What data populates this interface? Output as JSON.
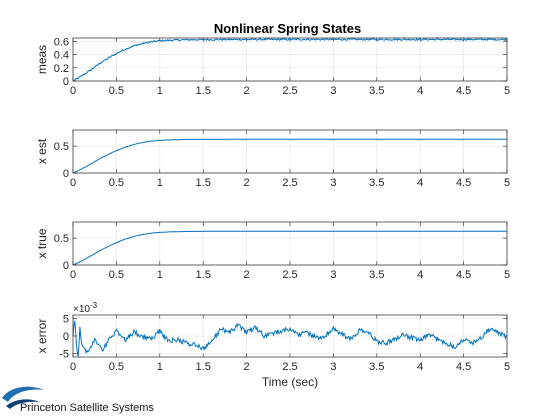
{
  "colors": {
    "series": "#0072BD",
    "axes": "#262626",
    "grid": "#e3e3e3"
  },
  "logo": {
    "text": "Princeton Satellite Systems",
    "icon": "swoosh-logo-icon"
  },
  "chart_data": [
    {
      "type": "line",
      "title": "Nonlinear Spring States",
      "ylabel": "meas",
      "xlabel": "",
      "xlim": [
        0,
        5
      ],
      "ylim": [
        0,
        0.65
      ],
      "xticks": [
        "0",
        "0.5",
        "1",
        "1.5",
        "2",
        "2.5",
        "3",
        "3.5",
        "4",
        "4.5",
        "5"
      ],
      "yticks": [
        "0",
        "0.2",
        "0.4",
        "0.6"
      ],
      "grid": true,
      "series": [
        {
          "values": {
            "x": [
              0,
              0.05,
              0.1,
              0.15,
              0.2,
              0.25,
              0.3,
              0.35,
              0.4,
              0.45,
              0.5,
              0.55,
              0.6,
              0.65,
              0.7,
              0.75,
              0.8,
              0.85,
              0.9,
              0.95,
              1.0,
              1.1,
              1.2,
              1.3,
              1.4,
              1.5,
              1.75,
              2.0,
              2.5,
              3.0,
              3.5,
              4.0,
              4.5,
              5.0
            ],
            "y": [
              0,
              0.035,
              0.075,
              0.12,
              0.165,
              0.21,
              0.26,
              0.3,
              0.34,
              0.38,
              0.415,
              0.45,
              0.48,
              0.505,
              0.53,
              0.55,
              0.565,
              0.58,
              0.592,
              0.6,
              0.607,
              0.615,
              0.62,
              0.623,
              0.625,
              0.626,
              0.627,
              0.628,
              0.628,
              0.628,
              0.628,
              0.628,
              0.628,
              0.628
            ]
          }
        }
      ],
      "noise": 0.012
    },
    {
      "type": "line",
      "title": "",
      "ylabel": "x est",
      "xlabel": "",
      "xlim": [
        0,
        5
      ],
      "ylim": [
        0,
        0.8
      ],
      "xticks": [
        "0",
        "0.5",
        "1",
        "1.5",
        "2",
        "2.5",
        "3",
        "3.5",
        "4",
        "4.5",
        "5"
      ],
      "yticks": [
        "0",
        "0.5"
      ],
      "grid": true,
      "series": [
        {
          "values": {
            "x": [
              0,
              0.05,
              0.1,
              0.15,
              0.2,
              0.25,
              0.3,
              0.35,
              0.4,
              0.45,
              0.5,
              0.55,
              0.6,
              0.65,
              0.7,
              0.75,
              0.8,
              0.85,
              0.9,
              0.95,
              1.0,
              1.1,
              1.2,
              1.3,
              1.4,
              1.5,
              1.75,
              2.0,
              2.5,
              3.0,
              3.5,
              4.0,
              4.5,
              5.0
            ],
            "y": [
              0,
              0.035,
              0.075,
              0.12,
              0.165,
              0.21,
              0.26,
              0.3,
              0.34,
              0.38,
              0.415,
              0.45,
              0.48,
              0.505,
              0.53,
              0.55,
              0.565,
              0.58,
              0.592,
              0.6,
              0.607,
              0.615,
              0.62,
              0.623,
              0.625,
              0.626,
              0.627,
              0.628,
              0.628,
              0.628,
              0.628,
              0.628,
              0.628,
              0.628
            ]
          }
        }
      ],
      "noise": 0.0015
    },
    {
      "type": "line",
      "title": "",
      "ylabel": "x true",
      "xlabel": "",
      "xlim": [
        0,
        5
      ],
      "ylim": [
        0,
        0.8
      ],
      "xticks": [
        "0",
        "0.5",
        "1",
        "1.5",
        "2",
        "2.5",
        "3",
        "3.5",
        "4",
        "4.5",
        "5"
      ],
      "yticks": [
        "0",
        "0.5"
      ],
      "grid": true,
      "series": [
        {
          "values": {
            "x": [
              0,
              0.05,
              0.1,
              0.15,
              0.2,
              0.25,
              0.3,
              0.35,
              0.4,
              0.45,
              0.5,
              0.55,
              0.6,
              0.65,
              0.7,
              0.75,
              0.8,
              0.85,
              0.9,
              0.95,
              1.0,
              1.1,
              1.2,
              1.3,
              1.4,
              1.5,
              1.75,
              2.0,
              2.5,
              3.0,
              3.5,
              4.0,
              4.5,
              5.0
            ],
            "y": [
              0,
              0.035,
              0.075,
              0.12,
              0.165,
              0.21,
              0.26,
              0.3,
              0.34,
              0.38,
              0.415,
              0.45,
              0.48,
              0.505,
              0.53,
              0.55,
              0.565,
              0.58,
              0.592,
              0.6,
              0.607,
              0.615,
              0.62,
              0.623,
              0.625,
              0.626,
              0.627,
              0.628,
              0.628,
              0.628,
              0.628,
              0.628,
              0.628,
              0.628
            ]
          }
        }
      ],
      "noise": 0
    },
    {
      "type": "line",
      "title": "",
      "ylabel": "x error",
      "xlabel": "Time (sec)",
      "xlim": [
        0,
        5
      ],
      "ylim": [
        -6,
        6
      ],
      "yscale_label": "×10",
      "yscale_exponent": "-3",
      "xticks": [
        "0",
        "0.5",
        "1",
        "1.5",
        "2",
        "2.5",
        "3",
        "3.5",
        "4",
        "4.5",
        "5"
      ],
      "yticks": [
        "-5",
        "0",
        "5"
      ],
      "grid": true,
      "series": [
        {
          "values": {
            "x": [
              0,
              0.02,
              0.04,
              0.06,
              0.08,
              0.1,
              0.15,
              0.2,
              0.25,
              0.3,
              0.35,
              0.4,
              0.5,
              0.6,
              0.7,
              0.8,
              0.9,
              1.0,
              1.1,
              1.2,
              1.3,
              1.4,
              1.5,
              1.6,
              1.7,
              1.8,
              1.9,
              2.0,
              2.1,
              2.2,
              2.3,
              2.4,
              2.5,
              2.6,
              2.7,
              2.8,
              2.9,
              3.0,
              3.1,
              3.2,
              3.3,
              3.4,
              3.5,
              3.6,
              3.7,
              3.8,
              3.9,
              4.0,
              4.1,
              4.2,
              4.3,
              4.4,
              4.5,
              4.6,
              4.7,
              4.8,
              4.9,
              5.0
            ],
            "y": [
              0,
              5,
              -3,
              -5.5,
              2,
              -2,
              -4.5,
              -3.5,
              -1,
              -2.5,
              -4,
              -1.5,
              1.5,
              -1,
              1,
              0,
              -1,
              1.5,
              -1.5,
              -1,
              -2,
              -2.5,
              -3.5,
              -1.5,
              2,
              1,
              3,
              1,
              2.5,
              0,
              0.5,
              1.5,
              2,
              0.5,
              1,
              -0.5,
              0,
              2,
              0.5,
              -1,
              1.5,
              1,
              -1.5,
              -2,
              -1,
              0.5,
              -0.5,
              -1.5,
              0.5,
              -1,
              -2,
              -3,
              -1,
              -2,
              -0.5,
              2,
              1,
              -0.5
            ]
          }
        }
      ],
      "noise": 0.7
    }
  ]
}
